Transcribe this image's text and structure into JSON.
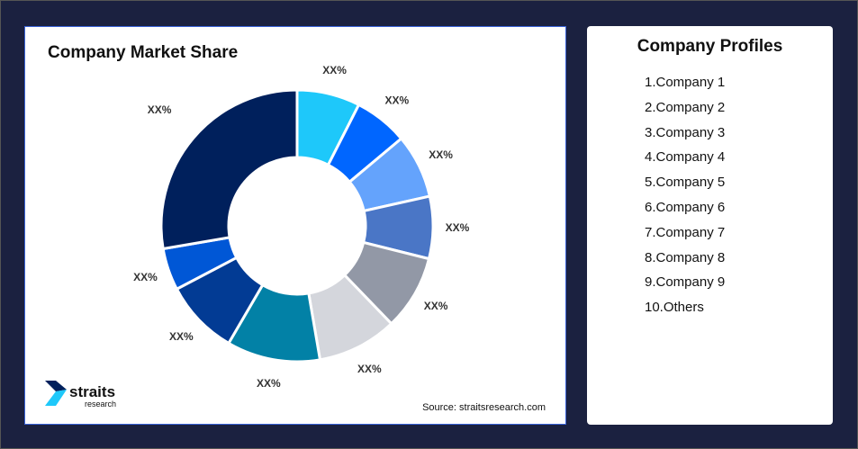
{
  "chart_data": {
    "type": "pie",
    "title": "Company Market Share",
    "donut": true,
    "slices": [
      {
        "label": "XX%",
        "value": 7.5,
        "color": "#1ec8fa"
      },
      {
        "label": "XX%",
        "value": 6.4,
        "color": "#0066ff"
      },
      {
        "label": "XX%",
        "value": 7.6,
        "color": "#64a3fc"
      },
      {
        "label": "XX%",
        "value": 7.4,
        "color": "#4a76c6"
      },
      {
        "label": "XX%",
        "value": 8.9,
        "color": "#9298a6"
      },
      {
        "label": "XX%",
        "value": 9.5,
        "color": "#d4d6dc"
      },
      {
        "label": "XX%",
        "value": 11.1,
        "color": "#0281a6"
      },
      {
        "label": "XX%",
        "value": 8.9,
        "color": "#023b94"
      },
      {
        "label": "XX%",
        "value": 5.0,
        "color": "#0057d6"
      },
      {
        "label": "XX%",
        "value": 27.7,
        "color": "#00205c"
      }
    ]
  },
  "source": "Source: straitsresearch.com",
  "logo": {
    "text": "straits",
    "subtext": "research"
  },
  "profiles": {
    "title": "Company Profiles",
    "items": [
      "1.Company 1",
      "2.Company 2",
      "3.Company 3",
      "4.Company 4",
      "5.Company 5",
      "6.Company 6",
      "7.Company 7",
      "8.Company 8",
      "9.Company 9",
      "10.Others"
    ]
  }
}
